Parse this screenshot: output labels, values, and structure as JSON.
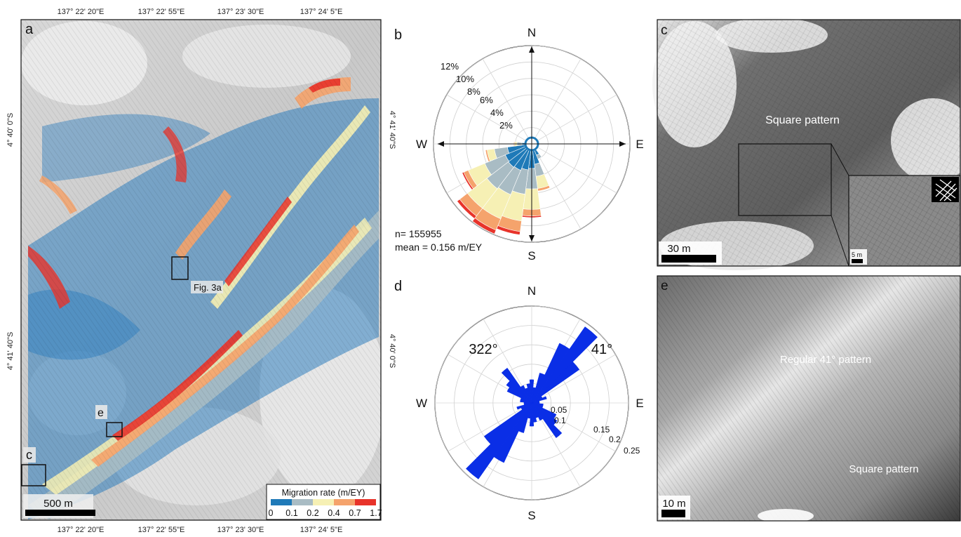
{
  "panel_a": {
    "label": "a",
    "top_coords": [
      "137° 22' 20\"E",
      "137° 22' 55\"E",
      "137° 23' 30\"E",
      "137° 24' 5\"E"
    ],
    "bottom_coords": [
      "137° 22' 20\"E",
      "137° 22' 55\"E",
      "137° 23' 30\"E",
      "137° 24' 5\"E"
    ],
    "left_coords": [
      "4° 40' 0\"S",
      "4° 41' 40\"S"
    ],
    "right_coords": [
      "4° 41' 40\"S",
      "4° 40' 0\"S"
    ],
    "box_labels": {
      "fig3a": "Fig. 3a",
      "e": "e",
      "c": "c"
    },
    "scalebar": "500 m",
    "legend": {
      "title": "Migration rate (m/EY)",
      "tick_labels": [
        "0",
        "0.1",
        "0.2",
        "0.4",
        "0.7",
        "1.7"
      ],
      "colors": [
        "#1f7ab8",
        "#a9bcc4",
        "#f6f0b4",
        "#f5a36c",
        "#e8332a"
      ]
    }
  },
  "panel_b": {
    "label": "b",
    "compass": {
      "n": "N",
      "e": "E",
      "s": "S",
      "w": "W"
    },
    "ring_labels": [
      "2%",
      "4%",
      "6%",
      "8%",
      "10%",
      "12%"
    ],
    "stats": {
      "n": "n= 155955",
      "mean": "mean = 0.156 m/EY"
    }
  },
  "panel_c": {
    "label": "c",
    "annotation": "Square pattern",
    "scalebar": "30 m",
    "inset_scalebar": "5 m"
  },
  "panel_d": {
    "label": "d",
    "compass": {
      "n": "N",
      "e": "E",
      "s": "S",
      "w": "W"
    },
    "angle_labels": [
      "322°",
      "41°"
    ],
    "ring_labels": [
      "0.05",
      "0.1",
      "0.15",
      "0.2",
      "0.25"
    ],
    "color": "#0a2ee6"
  },
  "panel_e": {
    "label": "e",
    "annotation_1": "Regular 41° pattern",
    "annotation_2": "Square pattern",
    "scalebar": "10 m"
  },
  "chart_data": [
    {
      "type": "rose",
      "panel": "b",
      "description_units": "percent of measurements per bearing bin, stacked by migration-rate class",
      "classes": [
        "0–0.1",
        "0.1–0.2",
        "0.2–0.4",
        "0.4–0.7",
        "0.7–1.7"
      ],
      "bins": [
        {
          "bearing": 90,
          "values": [
            0.5,
            0,
            0,
            0,
            0
          ]
        },
        {
          "bearing": 105,
          "values": [
            0.6,
            0,
            0,
            0,
            0
          ]
        },
        {
          "bearing": 120,
          "values": [
            0.6,
            0,
            0,
            0,
            0
          ]
        },
        {
          "bearing": 135,
          "values": [
            0.7,
            0,
            0,
            0,
            0
          ]
        },
        {
          "bearing": 150,
          "values": [
            1.5,
            0.5,
            0,
            0,
            0
          ]
        },
        {
          "bearing": 165,
          "values": [
            2.5,
            1.5,
            1.5,
            0.3,
            0
          ]
        },
        {
          "bearing": 180,
          "values": [
            3.0,
            2.5,
            2.5,
            0.8,
            0.2
          ]
        },
        {
          "bearing": 195,
          "values": [
            3.2,
            3.0,
            3.3,
            1.3,
            0.4
          ]
        },
        {
          "bearing": 210,
          "values": [
            3.5,
            3.2,
            3.2,
            1.5,
            0.5
          ]
        },
        {
          "bearing": 225,
          "values": [
            3.6,
            3.3,
            3.0,
            1.2,
            0.4
          ]
        },
        {
          "bearing": 240,
          "values": [
            3.5,
            2.7,
            2.2,
            0.6,
            0.2
          ]
        },
        {
          "bearing": 255,
          "values": [
            3.0,
            1.6,
            0.9,
            0.2,
            0
          ]
        },
        {
          "bearing": 270,
          "values": [
            1.2,
            0.6,
            0.3,
            0.1,
            0
          ]
        },
        {
          "bearing": 285,
          "values": [
            0.7,
            0,
            0,
            0,
            0
          ]
        },
        {
          "bearing": 300,
          "values": [
            0.6,
            0,
            0,
            0,
            0
          ]
        },
        {
          "bearing": 315,
          "values": [
            0.5,
            0,
            0,
            0,
            0
          ]
        },
        {
          "bearing": 330,
          "values": [
            0.6,
            0,
            0,
            0,
            0
          ]
        },
        {
          "bearing": 345,
          "values": [
            0.5,
            0,
            0,
            0,
            0
          ]
        },
        {
          "bearing": 0,
          "values": [
            0.5,
            0,
            0,
            0,
            0
          ]
        },
        {
          "bearing": 15,
          "values": [
            0.5,
            0,
            0,
            0,
            0
          ]
        },
        {
          "bearing": 30,
          "values": [
            0.5,
            0,
            0,
            0,
            0
          ]
        },
        {
          "bearing": 45,
          "values": [
            0.5,
            0,
            0,
            0,
            0
          ]
        },
        {
          "bearing": 60,
          "values": [
            0.5,
            0,
            0,
            0,
            0
          ]
        },
        {
          "bearing": 75,
          "values": [
            0.5,
            0,
            0,
            0,
            0
          ]
        }
      ],
      "rmax": 12
    },
    {
      "type": "rose",
      "panel": "d",
      "rmax": 0.25,
      "bins": [
        {
          "bearing": 0,
          "value": 0.06
        },
        {
          "bearing": 10,
          "value": 0.04
        },
        {
          "bearing": 20,
          "value": 0.08
        },
        {
          "bearing": 30,
          "value": 0.17
        },
        {
          "bearing": 40,
          "value": 0.24
        },
        {
          "bearing": 50,
          "value": 0.15
        },
        {
          "bearing": 60,
          "value": 0.03
        },
        {
          "bearing": 70,
          "value": 0.04
        },
        {
          "bearing": 80,
          "value": 0.02
        },
        {
          "bearing": 90,
          "value": 0.02
        },
        {
          "bearing": 100,
          "value": 0.03
        },
        {
          "bearing": 110,
          "value": 0.03
        },
        {
          "bearing": 120,
          "value": 0.07
        },
        {
          "bearing": 130,
          "value": 0.08
        },
        {
          "bearing": 140,
          "value": 0.11
        },
        {
          "bearing": 150,
          "value": 0.05
        },
        {
          "bearing": 160,
          "value": 0.04
        },
        {
          "bearing": 170,
          "value": 0.05
        },
        {
          "bearing": 180,
          "value": 0.06
        },
        {
          "bearing": 190,
          "value": 0.04
        },
        {
          "bearing": 200,
          "value": 0.08
        },
        {
          "bearing": 210,
          "value": 0.17
        },
        {
          "bearing": 220,
          "value": 0.24
        },
        {
          "bearing": 230,
          "value": 0.15
        },
        {
          "bearing": 240,
          "value": 0.03
        },
        {
          "bearing": 250,
          "value": 0.04
        },
        {
          "bearing": 260,
          "value": 0.02
        },
        {
          "bearing": 270,
          "value": 0.02
        },
        {
          "bearing": 280,
          "value": 0.03
        },
        {
          "bearing": 290,
          "value": 0.03
        },
        {
          "bearing": 300,
          "value": 0.07
        },
        {
          "bearing": 310,
          "value": 0.08
        },
        {
          "bearing": 320,
          "value": 0.11
        },
        {
          "bearing": 330,
          "value": 0.05
        },
        {
          "bearing": 340,
          "value": 0.04
        },
        {
          "bearing": 350,
          "value": 0.05
        }
      ]
    }
  ]
}
